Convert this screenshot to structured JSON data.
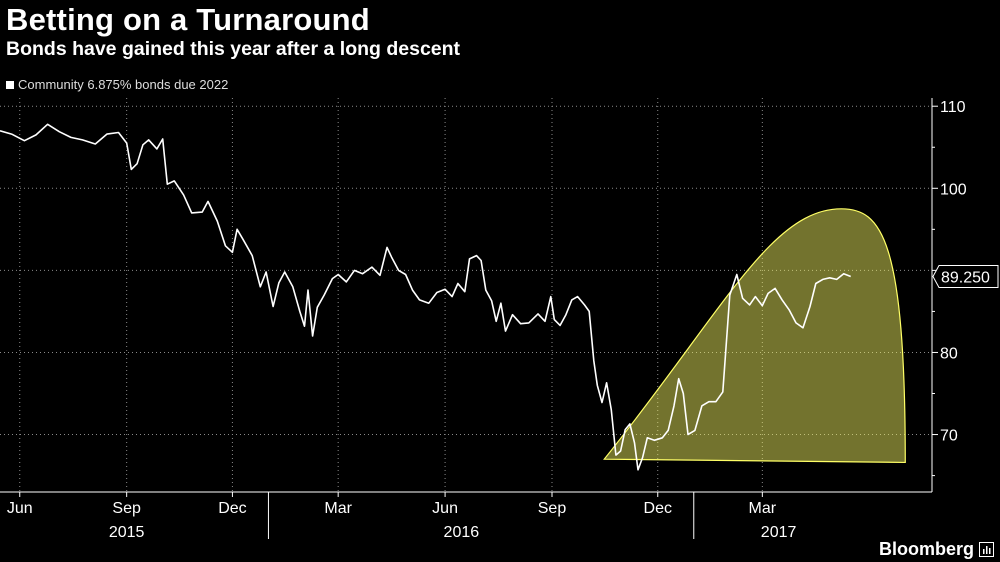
{
  "header": {
    "title": "Betting on a Turnaround",
    "subtitle": "Bonds have gained this year after a long descent"
  },
  "legend": {
    "label": "Community 6.875% bonds due 2022"
  },
  "brand": {
    "name": "Bloomberg",
    "icon": "bloomberg-terminal-icon"
  },
  "chart_data": {
    "type": "line",
    "title": "Betting on a Turnaround",
    "subtitle": "Bonds have gained this year after a long descent",
    "xlabel": "",
    "ylabel": "",
    "ylim": [
      63,
      111
    ],
    "xlim": [
      "2015-05-15",
      "2017-07-25"
    ],
    "y_ticks": [
      110,
      100,
      90,
      80,
      70
    ],
    "x_ticks": [
      {
        "label": "Jun",
        "date": "2015-06-01"
      },
      {
        "label": "Sep",
        "date": "2015-09-01"
      },
      {
        "label": "Dec",
        "date": "2015-12-01"
      },
      {
        "label": "Mar",
        "date": "2016-03-01"
      },
      {
        "label": "Jun",
        "date": "2016-06-01"
      },
      {
        "label": "Sep",
        "date": "2016-09-01"
      },
      {
        "label": "Dec",
        "date": "2016-12-01"
      },
      {
        "label": "Mar",
        "date": "2017-03-01"
      }
    ],
    "year_labels": [
      {
        "label": "2015",
        "date": "2015-09-01"
      },
      {
        "label": "2016",
        "date": "2016-06-15"
      },
      {
        "label": "2017",
        "date": "2017-03-15"
      }
    ],
    "year_dividers": [
      "2016-01-01",
      "2017-01-01"
    ],
    "grid": true,
    "series": [
      {
        "name": "Community 6.875% bonds due 2022",
        "color": "#ffffff",
        "last_value_label": "89.250",
        "points": [
          [
            "2015-05-15",
            107.0
          ],
          [
            "2015-05-25",
            106.6
          ],
          [
            "2015-06-05",
            105.8
          ],
          [
            "2015-06-15",
            106.5
          ],
          [
            "2015-06-25",
            107.8
          ],
          [
            "2015-07-05",
            106.9
          ],
          [
            "2015-07-15",
            106.2
          ],
          [
            "2015-07-25",
            105.9
          ],
          [
            "2015-08-05",
            105.4
          ],
          [
            "2015-08-15",
            106.6
          ],
          [
            "2015-08-25",
            106.8
          ],
          [
            "2015-09-01",
            105.5
          ],
          [
            "2015-09-05",
            102.3
          ],
          [
            "2015-09-10",
            103.0
          ],
          [
            "2015-09-15",
            105.3
          ],
          [
            "2015-09-20",
            105.9
          ],
          [
            "2015-09-27",
            104.8
          ],
          [
            "2015-10-02",
            106.0
          ],
          [
            "2015-10-06",
            100.5
          ],
          [
            "2015-10-12",
            100.9
          ],
          [
            "2015-10-20",
            99.2
          ],
          [
            "2015-10-27",
            97.0
          ],
          [
            "2015-11-05",
            97.1
          ],
          [
            "2015-11-10",
            98.4
          ],
          [
            "2015-11-18",
            96.0
          ],
          [
            "2015-11-25",
            93.0
          ],
          [
            "2015-12-01",
            92.2
          ],
          [
            "2015-12-05",
            95.0
          ],
          [
            "2015-12-10",
            93.8
          ],
          [
            "2015-12-18",
            91.8
          ],
          [
            "2015-12-25",
            88.0
          ],
          [
            "2015-12-30",
            89.8
          ],
          [
            "2016-01-05",
            85.6
          ],
          [
            "2016-01-10",
            88.5
          ],
          [
            "2016-01-15",
            89.8
          ],
          [
            "2016-01-22",
            88.0
          ],
          [
            "2016-01-28",
            85.0
          ],
          [
            "2016-02-01",
            83.2
          ],
          [
            "2016-02-04",
            87.6
          ],
          [
            "2016-02-08",
            82.0
          ],
          [
            "2016-02-12",
            85.5
          ],
          [
            "2016-02-18",
            87.0
          ],
          [
            "2016-02-25",
            89.0
          ],
          [
            "2016-03-01",
            89.5
          ],
          [
            "2016-03-08",
            88.6
          ],
          [
            "2016-03-15",
            90.0
          ],
          [
            "2016-03-22",
            89.6
          ],
          [
            "2016-03-30",
            90.4
          ],
          [
            "2016-04-06",
            89.4
          ],
          [
            "2016-04-12",
            92.8
          ],
          [
            "2016-04-16",
            91.6
          ],
          [
            "2016-04-22",
            90.0
          ],
          [
            "2016-04-28",
            89.5
          ],
          [
            "2016-05-04",
            87.6
          ],
          [
            "2016-05-10",
            86.4
          ],
          [
            "2016-05-18",
            86.0
          ],
          [
            "2016-05-25",
            87.3
          ],
          [
            "2016-06-01",
            87.7
          ],
          [
            "2016-06-07",
            86.8
          ],
          [
            "2016-06-12",
            88.4
          ],
          [
            "2016-06-18",
            87.4
          ],
          [
            "2016-06-22",
            91.4
          ],
          [
            "2016-06-28",
            91.8
          ],
          [
            "2016-07-02",
            91.2
          ],
          [
            "2016-07-06",
            87.6
          ],
          [
            "2016-07-11",
            86.3
          ],
          [
            "2016-07-15",
            83.8
          ],
          [
            "2016-07-19",
            86.0
          ],
          [
            "2016-07-23",
            82.6
          ],
          [
            "2016-07-29",
            84.6
          ],
          [
            "2016-08-05",
            83.5
          ],
          [
            "2016-08-12",
            83.6
          ],
          [
            "2016-08-20",
            84.7
          ],
          [
            "2016-08-26",
            83.8
          ],
          [
            "2016-08-31",
            86.8
          ],
          [
            "2016-09-03",
            84.0
          ],
          [
            "2016-09-08",
            83.3
          ],
          [
            "2016-09-13",
            84.6
          ],
          [
            "2016-09-18",
            86.4
          ],
          [
            "2016-09-23",
            86.8
          ],
          [
            "2016-09-29",
            85.8
          ],
          [
            "2016-10-03",
            85.0
          ],
          [
            "2016-10-07",
            79.0
          ],
          [
            "2016-10-10",
            76.0
          ],
          [
            "2016-10-14",
            73.9
          ],
          [
            "2016-10-18",
            76.3
          ],
          [
            "2016-10-22",
            73.0
          ],
          [
            "2016-10-26",
            67.5
          ],
          [
            "2016-10-30",
            68.0
          ],
          [
            "2016-11-03",
            70.6
          ],
          [
            "2016-11-07",
            71.3
          ],
          [
            "2016-11-11",
            69.0
          ],
          [
            "2016-11-14",
            65.7
          ],
          [
            "2016-11-18",
            67.2
          ],
          [
            "2016-11-22",
            69.6
          ],
          [
            "2016-11-28",
            69.3
          ],
          [
            "2016-12-05",
            69.6
          ],
          [
            "2016-12-10",
            70.5
          ],
          [
            "2016-12-15",
            73.5
          ],
          [
            "2016-12-19",
            76.8
          ],
          [
            "2016-12-23",
            75.0
          ],
          [
            "2016-12-27",
            70.0
          ],
          [
            "2017-01-02",
            70.5
          ],
          [
            "2017-01-08",
            73.5
          ],
          [
            "2017-01-14",
            74.0
          ],
          [
            "2017-01-20",
            74.0
          ],
          [
            "2017-01-26",
            75.2
          ],
          [
            "2017-02-01",
            87.0
          ],
          [
            "2017-02-07",
            89.5
          ],
          [
            "2017-02-12",
            86.6
          ],
          [
            "2017-02-18",
            85.8
          ],
          [
            "2017-02-23",
            86.8
          ],
          [
            "2017-03-01",
            85.7
          ],
          [
            "2017-03-06",
            87.2
          ],
          [
            "2017-03-12",
            87.8
          ],
          [
            "2017-03-18",
            86.4
          ],
          [
            "2017-03-24",
            85.2
          ],
          [
            "2017-03-30",
            83.6
          ],
          [
            "2017-04-05",
            83.0
          ],
          [
            "2017-04-11",
            85.6
          ],
          [
            "2017-04-16",
            88.4
          ],
          [
            "2017-04-22",
            88.9
          ],
          [
            "2017-04-28",
            89.1
          ],
          [
            "2017-05-04",
            88.9
          ],
          [
            "2017-05-10",
            89.6
          ],
          [
            "2017-05-16",
            89.25
          ]
        ]
      }
    ],
    "annotations": [
      {
        "type": "highlight-wedge",
        "color": "#ffff66",
        "description_points": [
          [
            "2016-10-16",
            67.0
          ],
          [
            "2017-07-02",
            66.6
          ]
        ]
      }
    ]
  }
}
